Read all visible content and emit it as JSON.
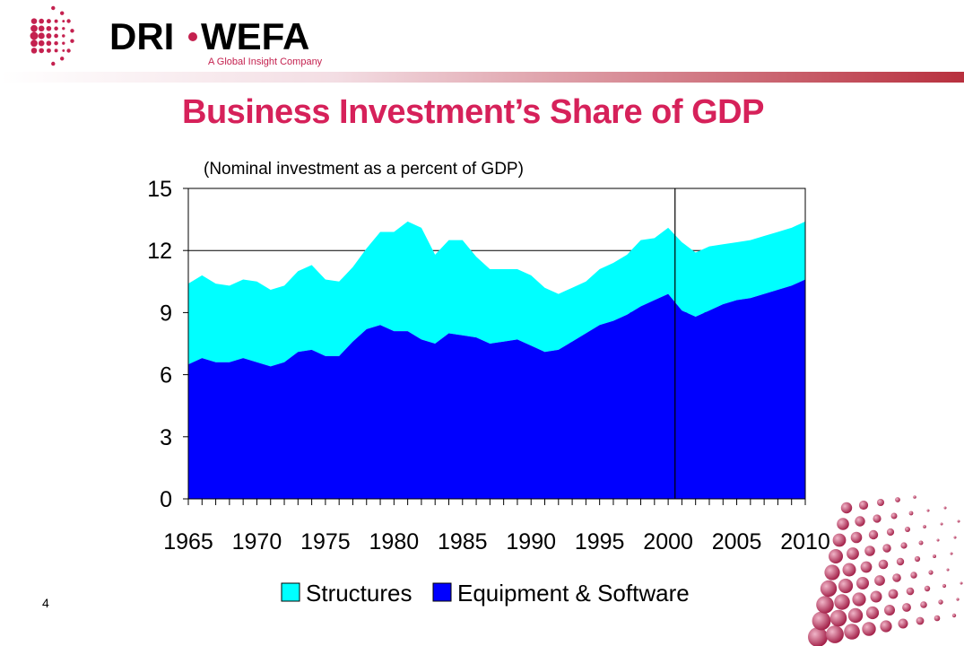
{
  "logo": {
    "brand_left": "DRI",
    "brand_right": "WEFA",
    "tagline": "A Global Insight Company"
  },
  "slide": {
    "title": "Business Investment’s Share of GDP",
    "subtitle": "(Nominal investment as a percent of GDP)",
    "number": "4"
  },
  "colors": {
    "title": "#d6215a",
    "structures": "#00ffff",
    "equipment": "#0000ff",
    "logo_dots": "#c4214f"
  },
  "chart_data": {
    "type": "area",
    "stacked": true,
    "x": [
      1965,
      1966,
      1967,
      1968,
      1969,
      1970,
      1971,
      1972,
      1973,
      1974,
      1975,
      1976,
      1977,
      1978,
      1979,
      1980,
      1981,
      1982,
      1983,
      1984,
      1985,
      1986,
      1987,
      1988,
      1989,
      1990,
      1991,
      1992,
      1993,
      1994,
      1995,
      1996,
      1997,
      1998,
      1999,
      2000,
      2001,
      2002,
      2003,
      2004,
      2005,
      2006,
      2007,
      2008,
      2009,
      2010
    ],
    "x_tick_labels": [
      "1965",
      "1970",
      "1975",
      "1980",
      "1985",
      "1990",
      "1995",
      "2000",
      "2005",
      "2010"
    ],
    "y_ticks": [
      0,
      3,
      6,
      9,
      12,
      15
    ],
    "ylim": [
      0,
      15
    ],
    "grid": "horizontal",
    "forecast_line_x": 2000.5,
    "legend_position": "bottom",
    "series": [
      {
        "name": "Equipment & Software",
        "values": [
          6.5,
          6.8,
          6.6,
          6.6,
          6.8,
          6.6,
          6.4,
          6.6,
          7.1,
          7.2,
          6.9,
          6.9,
          7.6,
          8.2,
          8.4,
          8.1,
          8.1,
          7.7,
          7.5,
          8.0,
          7.9,
          7.8,
          7.5,
          7.6,
          7.7,
          7.4,
          7.1,
          7.2,
          7.6,
          8.0,
          8.4,
          8.6,
          8.9,
          9.3,
          9.6,
          9.9,
          9.1,
          8.8,
          9.1,
          9.4,
          9.6,
          9.7,
          9.9,
          10.1,
          10.3,
          10.6
        ]
      },
      {
        "name": "Structures",
        "values": [
          3.9,
          4.0,
          3.8,
          3.7,
          3.8,
          3.9,
          3.7,
          3.7,
          3.9,
          4.1,
          3.7,
          3.6,
          3.6,
          3.9,
          4.5,
          4.8,
          5.3,
          5.4,
          4.3,
          4.5,
          4.6,
          3.9,
          3.6,
          3.5,
          3.4,
          3.4,
          3.1,
          2.7,
          2.6,
          2.5,
          2.7,
          2.8,
          2.9,
          3.2,
          3.0,
          3.2,
          3.3,
          3.1,
          3.1,
          2.9,
          2.8,
          2.8,
          2.8,
          2.8,
          2.8,
          2.8
        ]
      }
    ]
  }
}
